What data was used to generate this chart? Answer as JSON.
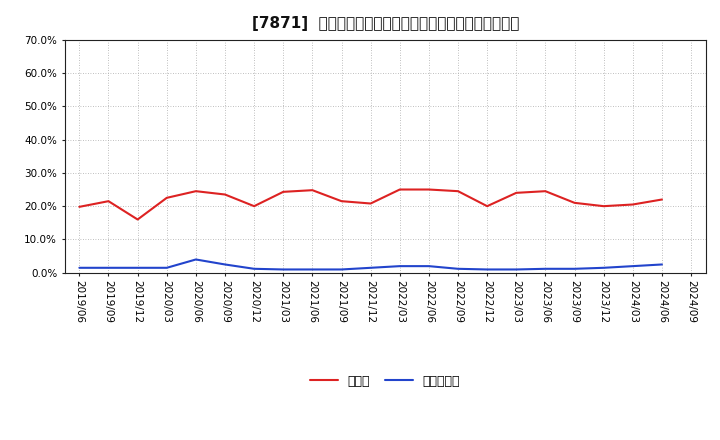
{
  "title": "[7871]  現預金、有利子負債の総資産に対する比率の推移",
  "x_labels": [
    "2019/06",
    "2019/09",
    "2019/12",
    "2020/03",
    "2020/06",
    "2020/09",
    "2020/12",
    "2021/03",
    "2021/06",
    "2021/09",
    "2021/12",
    "2022/03",
    "2022/06",
    "2022/09",
    "2022/12",
    "2023/03",
    "2023/06",
    "2023/09",
    "2023/12",
    "2024/03",
    "2024/06",
    "2024/09"
  ],
  "cash_values": [
    19.8,
    21.5,
    16.0,
    22.5,
    24.5,
    23.5,
    20.0,
    24.3,
    24.8,
    21.5,
    20.8,
    25.0,
    25.0,
    24.5,
    20.0,
    24.0,
    24.5,
    21.0,
    20.0,
    20.5,
    22.0,
    null
  ],
  "debt_values": [
    1.5,
    1.5,
    1.5,
    1.5,
    4.0,
    2.5,
    1.2,
    1.0,
    1.0,
    1.0,
    1.5,
    2.0,
    2.0,
    1.2,
    1.0,
    1.0,
    1.2,
    1.2,
    1.5,
    2.0,
    2.5,
    null
  ],
  "cash_color": "#dd2222",
  "debt_color": "#2244cc",
  "ylim": [
    0.0,
    70.0
  ],
  "yticks": [
    0.0,
    10.0,
    20.0,
    30.0,
    40.0,
    50.0,
    60.0,
    70.0
  ],
  "legend_cash": "現預金",
  "legend_debt": "有利子負債",
  "bg_color": "#ffffff",
  "plot_bg_color": "#ffffff",
  "grid_color": "#aaaaaa",
  "spine_color": "#222222",
  "title_fontsize": 11,
  "axis_fontsize": 7.5,
  "legend_fontsize": 9,
  "linewidth": 1.5
}
